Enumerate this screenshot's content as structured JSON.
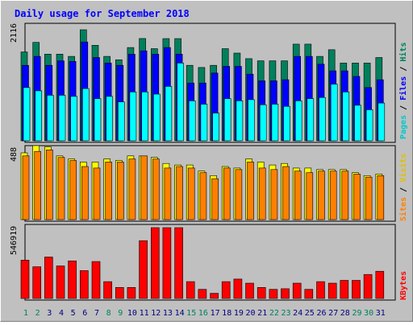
{
  "chart_data": [
    {
      "type": "bar",
      "title": "Daily usage for September 2018",
      "panel": "hits-files-pages",
      "categories": [
        "1",
        "2",
        "3",
        "4",
        "5",
        "6",
        "7",
        "8",
        "9",
        "10",
        "11",
        "12",
        "13",
        "14",
        "15",
        "16",
        "17",
        "18",
        "19",
        "20",
        "21",
        "22",
        "23",
        "24",
        "25",
        "26",
        "27",
        "28",
        "29",
        "30",
        "31"
      ],
      "ymax_label": "2116",
      "ylim": [
        0,
        2116
      ],
      "legend": [
        "Pages",
        "/",
        "Files",
        "/",
        "Hits"
      ],
      "series": [
        {
          "name": "Hits",
          "color": "#00805c",
          "values": [
            1600,
            1772,
            1561,
            1561,
            1520,
            2000,
            1720,
            1520,
            1460,
            1680,
            1842,
            1660,
            1840,
            1840,
            1360,
            1320,
            1360,
            1660,
            1580,
            1480,
            1440,
            1440,
            1440,
            1740,
            1740,
            1520,
            1640,
            1400,
            1400,
            1400,
            1500
          ]
        },
        {
          "name": "Files",
          "color": "#0000ff",
          "values": [
            1360,
            1520,
            1360,
            1440,
            1430,
            1780,
            1500,
            1400,
            1360,
            1560,
            1620,
            1560,
            1680,
            1560,
            1040,
            1040,
            1220,
            1340,
            1340,
            1200,
            1080,
            1080,
            1100,
            1520,
            1520,
            1380,
            1260,
            1260,
            1160,
            960,
            1100
          ]
        },
        {
          "name": "Pages",
          "color": "#00ffff",
          "values": [
            960,
            900,
            820,
            820,
            800,
            940,
            760,
            800,
            700,
            880,
            880,
            840,
            980,
            1400,
            720,
            660,
            500,
            760,
            720,
            740,
            650,
            660,
            620,
            720,
            760,
            780,
            1020,
            880,
            640,
            560,
            680
          ]
        }
      ]
    },
    {
      "type": "bar",
      "panel": "visits-sites",
      "categories": [
        "1",
        "2",
        "3",
        "4",
        "5",
        "6",
        "7",
        "8",
        "9",
        "10",
        "11",
        "12",
        "13",
        "14",
        "15",
        "16",
        "17",
        "18",
        "19",
        "20",
        "21",
        "22",
        "23",
        "24",
        "25",
        "26",
        "27",
        "28",
        "29",
        "30",
        "31"
      ],
      "ymax_label": "488",
      "ylim": [
        0,
        488
      ],
      "legend": [
        "Sites",
        "/",
        "Visits"
      ],
      "series": [
        {
          "name": "Visits",
          "color": "#ffff00",
          "values": [
            440,
            488,
            480,
            420,
            400,
            380,
            380,
            400,
            390,
            420,
            420,
            410,
            370,
            360,
            360,
            320,
            290,
            350,
            340,
            400,
            380,
            360,
            370,
            340,
            340,
            330,
            330,
            330,
            310,
            290,
            300
          ]
        },
        {
          "name": "Sites",
          "color": "#ff8000",
          "values": [
            420,
            450,
            460,
            410,
            390,
            350,
            340,
            380,
            380,
            400,
            420,
            400,
            340,
            350,
            340,
            310,
            270,
            340,
            330,
            380,
            340,
            330,
            350,
            320,
            310,
            320,
            320,
            320,
            300,
            280,
            290
          ]
        }
      ]
    },
    {
      "type": "bar",
      "panel": "kbytes",
      "categories": [
        "1",
        "2",
        "3",
        "4",
        "5",
        "6",
        "7",
        "8",
        "9",
        "10",
        "11",
        "12",
        "13",
        "14",
        "15",
        "16",
        "17",
        "18",
        "19",
        "20",
        "21",
        "22",
        "23",
        "24",
        "25",
        "26",
        "27",
        "28",
        "29",
        "30",
        "31"
      ],
      "ymax_label": "546919",
      "ylim": [
        0,
        546919
      ],
      "legend": [
        "KBytes"
      ],
      "series": [
        {
          "name": "KBytes",
          "color": "#ff0000",
          "values": [
            296000,
            245000,
            320000,
            251000,
            290000,
            215000,
            285000,
            130000,
            85000,
            85000,
            446000,
            546919,
            546919,
            546919,
            130000,
            70000,
            40000,
            130000,
            150000,
            118000,
            85000,
            70000,
            75000,
            118000,
            70000,
            130000,
            118000,
            140000,
            140000,
            185000,
            210000
          ]
        }
      ]
    }
  ],
  "x_label_colors": {
    "weekday": "#000080",
    "weekend": "#00805c"
  },
  "weekend_days": [
    "1",
    "2",
    "8",
    "9",
    "15",
    "16",
    "22",
    "23",
    "29",
    "30"
  ]
}
